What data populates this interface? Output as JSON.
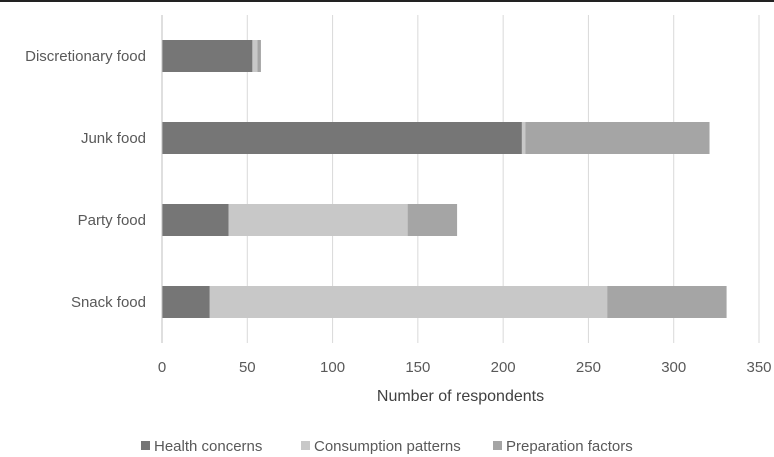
{
  "chart_data": {
    "type": "bar",
    "orientation": "horizontal",
    "stacked": true,
    "categories": [
      "Discretionary food",
      "Junk food",
      "Party food",
      "Snack food"
    ],
    "series": [
      {
        "name": "Health concerns",
        "values": [
          53,
          211,
          39,
          28
        ],
        "color": "#767676"
      },
      {
        "name": "Consumption patterns",
        "values": [
          3,
          2,
          105,
          233
        ],
        "color": "#c8c8c8"
      },
      {
        "name": "Preparation factors",
        "values": [
          2,
          108,
          29,
          70
        ],
        "color": "#a5a5a5"
      }
    ],
    "title": "",
    "xlabel": "Number of respondents",
    "ylabel": "",
    "xlim": [
      0,
      350
    ],
    "xticks": [
      0,
      50,
      100,
      150,
      200,
      250,
      300,
      350
    ],
    "grid": "vertical",
    "legend_position": "bottom"
  }
}
